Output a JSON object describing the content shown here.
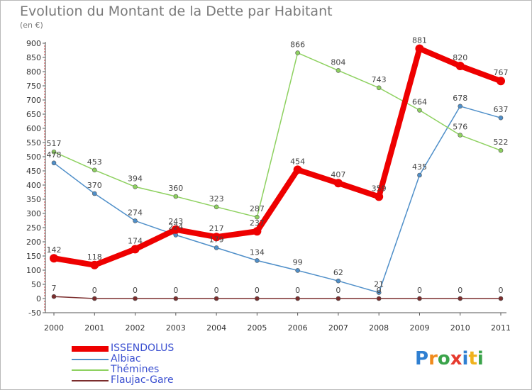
{
  "title": "Evolution du Montant de la Dette par Habitant",
  "subtitle": "(en €)",
  "logo": {
    "text": "Proxiti",
    "letter_colors": [
      "#2f7fd1",
      "#f08a1c",
      "#3aa34a",
      "#e63a2e",
      "#2f7fd1",
      "#f0b21c",
      "#3aa34a"
    ]
  },
  "chart_data": {
    "type": "line",
    "title": "Evolution du Montant de la Dette par Habitant",
    "ylabel": "(en €)",
    "xlabel": "",
    "categories": [
      "2000",
      "2001",
      "2002",
      "2003",
      "2004",
      "2005",
      "2006",
      "2007",
      "2008",
      "2009",
      "2010",
      "2011"
    ],
    "ylim": [
      -50,
      900
    ],
    "yticks": [
      -50,
      0,
      50,
      100,
      150,
      200,
      250,
      300,
      350,
      400,
      450,
      500,
      550,
      600,
      650,
      700,
      750,
      800,
      850,
      900
    ],
    "grid": false,
    "legend_position": "bottom-left",
    "series": [
      {
        "name": "ISSENDOLUS",
        "color": "#ee0000",
        "values": [
          142,
          118,
          174,
          243,
          217,
          237,
          454,
          407,
          359,
          881,
          820,
          767
        ]
      },
      {
        "name": "Albiac",
        "color": "#4f8fc9",
        "values": [
          478,
          370,
          274,
          224,
          179,
          134,
          99,
          62,
          21,
          435,
          678,
          637
        ]
      },
      {
        "name": "Thémines",
        "color": "#8ed160",
        "values": [
          517,
          453,
          394,
          360,
          323,
          287,
          866,
          804,
          743,
          664,
          576,
          522
        ]
      },
      {
        "name": "Flaujac-Gare",
        "color": "#7b2d2d",
        "values": [
          7,
          0,
          0,
          0,
          0,
          0,
          0,
          0,
          0,
          0,
          0,
          0
        ]
      }
    ]
  }
}
